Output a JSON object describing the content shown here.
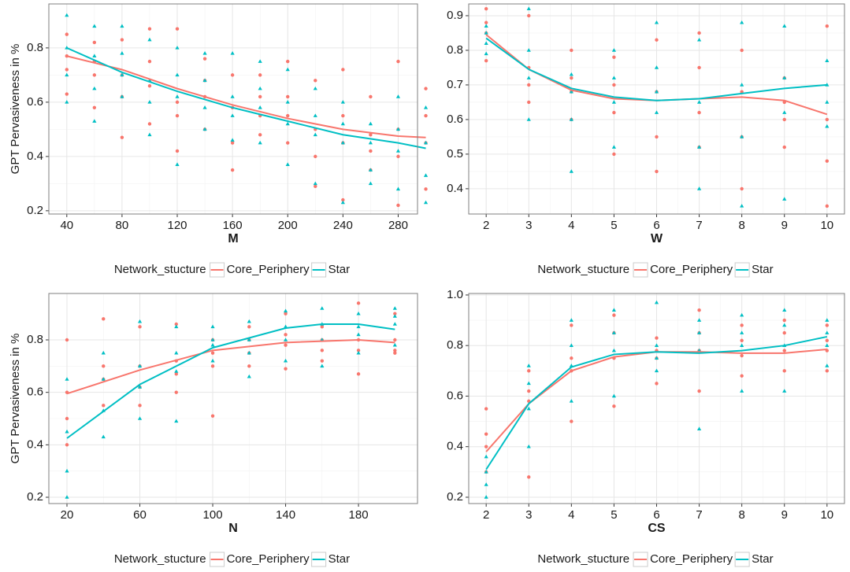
{
  "chart_data": [
    {
      "type": "scatter",
      "x_label": "M",
      "y_label": "GPT Pervasiveness in %",
      "legend_title": "Network_stucture",
      "xlim": [
        27,
        294
      ],
      "ylim": [
        0.188,
        0.962
      ],
      "xticks": [
        40,
        80,
        120,
        160,
        200,
        240,
        280
      ],
      "yticks": [
        0.2,
        0.4,
        0.6,
        0.8
      ],
      "grid": true,
      "series": [
        {
          "name": "Core_Periphery",
          "color": "#f8766d",
          "x": [
            40,
            40,
            40,
            40,
            60,
            60,
            60,
            60,
            80,
            80,
            80,
            80,
            100,
            100,
            100,
            100,
            120,
            120,
            120,
            120,
            140,
            140,
            140,
            140,
            160,
            160,
            160,
            160,
            180,
            180,
            180,
            180,
            200,
            200,
            200,
            200,
            220,
            220,
            220,
            220,
            240,
            240,
            240,
            240,
            260,
            260,
            260,
            260,
            280,
            280,
            280,
            280,
            300,
            300,
            300,
            300
          ],
          "values": [
            0.77,
            0.63,
            0.85,
            0.72,
            0.75,
            0.58,
            0.82,
            0.7,
            0.47,
            0.7,
            0.83,
            0.62,
            0.66,
            0.52,
            0.87,
            0.75,
            0.87,
            0.42,
            0.6,
            0.55,
            0.62,
            0.5,
            0.76,
            0.68,
            0.35,
            0.58,
            0.7,
            0.45,
            0.55,
            0.7,
            0.48,
            0.62,
            0.75,
            0.45,
            0.55,
            0.62,
            0.29,
            0.5,
            0.68,
            0.4,
            0.24,
            0.45,
            0.72,
            0.55,
            0.35,
            0.48,
            0.62,
            0.42,
            0.22,
            0.75,
            0.4,
            0.5,
            0.65,
            0.28,
            0.45,
            0.55
          ],
          "fit_x": [
            40,
            80,
            120,
            160,
            200,
            240,
            280,
            300
          ],
          "fit_values": [
            0.77,
            0.72,
            0.65,
            0.59,
            0.54,
            0.5,
            0.475,
            0.47
          ]
        },
        {
          "name": "Star",
          "color": "#00bfc4",
          "x": [
            40,
            40,
            40,
            40,
            60,
            60,
            60,
            60,
            80,
            80,
            80,
            80,
            100,
            100,
            100,
            100,
            120,
            120,
            120,
            120,
            140,
            140,
            140,
            140,
            160,
            160,
            160,
            160,
            180,
            180,
            180,
            180,
            200,
            200,
            200,
            200,
            220,
            220,
            220,
            220,
            240,
            240,
            240,
            240,
            260,
            260,
            260,
            260,
            280,
            280,
            280,
            280,
            300,
            300,
            300,
            300
          ],
          "values": [
            0.92,
            0.6,
            0.8,
            0.7,
            0.88,
            0.53,
            0.77,
            0.65,
            0.88,
            0.62,
            0.78,
            0.7,
            0.83,
            0.48,
            0.68,
            0.6,
            0.8,
            0.37,
            0.62,
            0.7,
            0.78,
            0.5,
            0.68,
            0.58,
            0.78,
            0.46,
            0.62,
            0.55,
            0.75,
            0.45,
            0.58,
            0.65,
            0.72,
            0.37,
            0.52,
            0.6,
            0.65,
            0.3,
            0.48,
            0.55,
            0.6,
            0.23,
            0.45,
            0.52,
            0.52,
            0.35,
            0.45,
            0.3,
            0.62,
            0.28,
            0.42,
            0.5,
            0.58,
            0.23,
            0.33,
            0.45
          ],
          "fit_x": [
            40,
            80,
            120,
            160,
            200,
            240,
            280,
            300
          ],
          "fit_values": [
            0.8,
            0.71,
            0.64,
            0.58,
            0.53,
            0.48,
            0.45,
            0.43
          ]
        }
      ]
    },
    {
      "type": "scatter",
      "x_label": "W",
      "legend_title": "Network_stucture",
      "xlim": [
        1.59,
        10.41
      ],
      "ylim": [
        0.327,
        0.934
      ],
      "xticks": [
        2,
        3,
        4,
        5,
        6,
        7,
        8,
        9,
        10
      ],
      "yticks": [
        0.4,
        0.5,
        0.6,
        0.7,
        0.8,
        0.9
      ],
      "grid": true,
      "series": [
        {
          "name": "Core_Periphery",
          "color": "#f8766d",
          "x": [
            2,
            2,
            2,
            2,
            3,
            3,
            3,
            3,
            4,
            4,
            4,
            4,
            5,
            5,
            5,
            5,
            6,
            6,
            6,
            6,
            7,
            7,
            7,
            7,
            8,
            8,
            8,
            8,
            9,
            9,
            9,
            9,
            10,
            10,
            10,
            10
          ],
          "values": [
            0.92,
            0.77,
            0.85,
            0.88,
            0.9,
            0.65,
            0.75,
            0.7,
            0.8,
            0.6,
            0.68,
            0.72,
            0.78,
            0.5,
            0.62,
            0.7,
            0.83,
            0.45,
            0.55,
            0.68,
            0.85,
            0.52,
            0.62,
            0.75,
            0.8,
            0.4,
            0.55,
            0.68,
            0.72,
            0.52,
            0.6,
            0.65,
            0.87,
            0.35,
            0.48,
            0.6
          ],
          "fit_x": [
            2,
            3,
            4,
            5,
            6,
            7,
            8,
            9,
            10
          ],
          "fit_values": [
            0.845,
            0.745,
            0.685,
            0.66,
            0.655,
            0.66,
            0.665,
            0.655,
            0.615
          ]
        },
        {
          "name": "Star",
          "color": "#00bfc4",
          "x": [
            2,
            2,
            2,
            2,
            3,
            3,
            3,
            3,
            4,
            4,
            4,
            4,
            5,
            5,
            5,
            5,
            6,
            6,
            6,
            6,
            7,
            7,
            7,
            7,
            8,
            8,
            8,
            8,
            9,
            9,
            9,
            9,
            10,
            10,
            10,
            10
          ],
          "values": [
            0.87,
            0.79,
            0.82,
            0.85,
            0.92,
            0.6,
            0.72,
            0.8,
            0.73,
            0.45,
            0.6,
            0.68,
            0.8,
            0.52,
            0.65,
            0.72,
            0.88,
            0.62,
            0.68,
            0.75,
            0.83,
            0.4,
            0.52,
            0.65,
            0.88,
            0.35,
            0.55,
            0.7,
            0.87,
            0.37,
            0.62,
            0.72,
            0.77,
            0.58,
            0.65,
            0.7
          ],
          "fit_x": [
            2,
            3,
            4,
            5,
            6,
            7,
            8,
            9,
            10
          ],
          "fit_values": [
            0.835,
            0.745,
            0.69,
            0.665,
            0.655,
            0.66,
            0.675,
            0.69,
            0.7
          ]
        }
      ]
    },
    {
      "type": "scatter",
      "x_label": "N",
      "y_label": "GPT Pervasiveness in %",
      "legend_title": "Network_stucture",
      "xlim": [
        10.05,
        212.4
      ],
      "ylim": [
        0.176,
        0.977
      ],
      "xticks": [
        20,
        60,
        100,
        140,
        180
      ],
      "yticks": [
        0.2,
        0.4,
        0.6,
        0.8
      ],
      "grid": true,
      "series": [
        {
          "name": "Core_Periphery",
          "color": "#f8766d",
          "x": [
            20,
            20,
            20,
            20,
            40,
            40,
            40,
            40,
            60,
            60,
            60,
            60,
            80,
            80,
            80,
            80,
            100,
            100,
            100,
            100,
            120,
            120,
            120,
            120,
            140,
            140,
            140,
            140,
            160,
            160,
            160,
            160,
            180,
            180,
            180,
            180,
            200,
            200,
            200,
            200
          ],
          "values": [
            0.8,
            0.5,
            0.6,
            0.4,
            0.88,
            0.55,
            0.65,
            0.7,
            0.85,
            0.55,
            0.7,
            0.62,
            0.86,
            0.6,
            0.72,
            0.67,
            0.51,
            0.75,
            0.8,
            0.7,
            0.85,
            0.75,
            0.8,
            0.7,
            0.9,
            0.69,
            0.78,
            0.82,
            0.85,
            0.72,
            0.8,
            0.76,
            0.94,
            0.67,
            0.8,
            0.76,
            0.9,
            0.75,
            0.8,
            0.76
          ],
          "fit_x": [
            20,
            60,
            100,
            140,
            180,
            200
          ],
          "fit_values": [
            0.595,
            0.685,
            0.76,
            0.79,
            0.8,
            0.79
          ]
        },
        {
          "name": "Star",
          "color": "#00bfc4",
          "x": [
            20,
            20,
            20,
            20,
            40,
            40,
            40,
            40,
            60,
            60,
            60,
            60,
            80,
            80,
            80,
            80,
            100,
            100,
            100,
            100,
            120,
            120,
            120,
            120,
            140,
            140,
            140,
            140,
            160,
            160,
            160,
            160,
            180,
            180,
            180,
            180,
            200,
            200,
            200,
            200
          ],
          "values": [
            0.65,
            0.2,
            0.3,
            0.45,
            0.75,
            0.43,
            0.53,
            0.65,
            0.87,
            0.5,
            0.62,
            0.7,
            0.85,
            0.49,
            0.68,
            0.75,
            0.85,
            0.72,
            0.78,
            0.8,
            0.87,
            0.66,
            0.8,
            0.75,
            0.91,
            0.72,
            0.85,
            0.8,
            0.92,
            0.7,
            0.86,
            0.8,
            0.9,
            0.75,
            0.85,
            0.82,
            0.92,
            0.78,
            0.86,
            0.89
          ],
          "fit_x": [
            20,
            60,
            100,
            140,
            160,
            180,
            200
          ],
          "fit_values": [
            0.425,
            0.63,
            0.77,
            0.845,
            0.86,
            0.86,
            0.84
          ]
        }
      ]
    },
    {
      "type": "scatter",
      "x_label": "CS",
      "legend_title": "Network_stucture",
      "xlim": [
        1.59,
        10.41
      ],
      "ylim": [
        0.175,
        1.006
      ],
      "xticks": [
        2,
        3,
        4,
        5,
        6,
        7,
        8,
        9,
        10
      ],
      "yticks": [
        0.2,
        0.4,
        0.6,
        0.8,
        {
          "value": 1,
          "label": "1.0"
        }
      ],
      "grid": true,
      "series": [
        {
          "name": "Core_Periphery",
          "color": "#f8766d",
          "x": [
            2,
            2,
            2,
            2,
            3,
            3,
            3,
            3,
            4,
            4,
            4,
            4,
            5,
            5,
            5,
            5,
            6,
            6,
            6,
            6,
            7,
            7,
            7,
            7,
            8,
            8,
            8,
            8,
            9,
            9,
            9,
            9,
            10,
            10,
            10,
            10
          ],
          "values": [
            0.55,
            0.3,
            0.4,
            0.45,
            0.7,
            0.28,
            0.58,
            0.62,
            0.88,
            0.5,
            0.7,
            0.75,
            0.92,
            0.56,
            0.75,
            0.85,
            0.83,
            0.65,
            0.78,
            0.75,
            0.94,
            0.62,
            0.78,
            0.85,
            0.88,
            0.68,
            0.76,
            0.82,
            0.9,
            0.7,
            0.78,
            0.85,
            0.88,
            0.7,
            0.78,
            0.82
          ],
          "fit_x": [
            2,
            3,
            4,
            5,
            6,
            7,
            8,
            9,
            10
          ],
          "fit_values": [
            0.38,
            0.57,
            0.7,
            0.755,
            0.775,
            0.775,
            0.77,
            0.77,
            0.785
          ]
        },
        {
          "name": "Star",
          "color": "#00bfc4",
          "x": [
            2,
            2,
            2,
            2,
            3,
            3,
            3,
            3,
            4,
            4,
            4,
            4,
            5,
            5,
            5,
            5,
            6,
            6,
            6,
            6,
            7,
            7,
            7,
            7,
            8,
            8,
            8,
            8,
            9,
            9,
            9,
            9,
            10,
            10,
            10,
            10
          ],
          "values": [
            0.36,
            0.2,
            0.3,
            0.25,
            0.72,
            0.4,
            0.55,
            0.65,
            0.9,
            0.58,
            0.72,
            0.8,
            0.94,
            0.6,
            0.78,
            0.85,
            0.97,
            0.7,
            0.8,
            0.75,
            0.9,
            0.47,
            0.78,
            0.85,
            0.92,
            0.62,
            0.8,
            0.85,
            0.94,
            0.62,
            0.8,
            0.88,
            0.9,
            0.72,
            0.8,
            0.85
          ],
          "fit_x": [
            2,
            3,
            4,
            5,
            6,
            7,
            8,
            9,
            10
          ],
          "fit_values": [
            0.31,
            0.57,
            0.715,
            0.765,
            0.775,
            0.77,
            0.78,
            0.8,
            0.835
          ]
        }
      ]
    }
  ]
}
